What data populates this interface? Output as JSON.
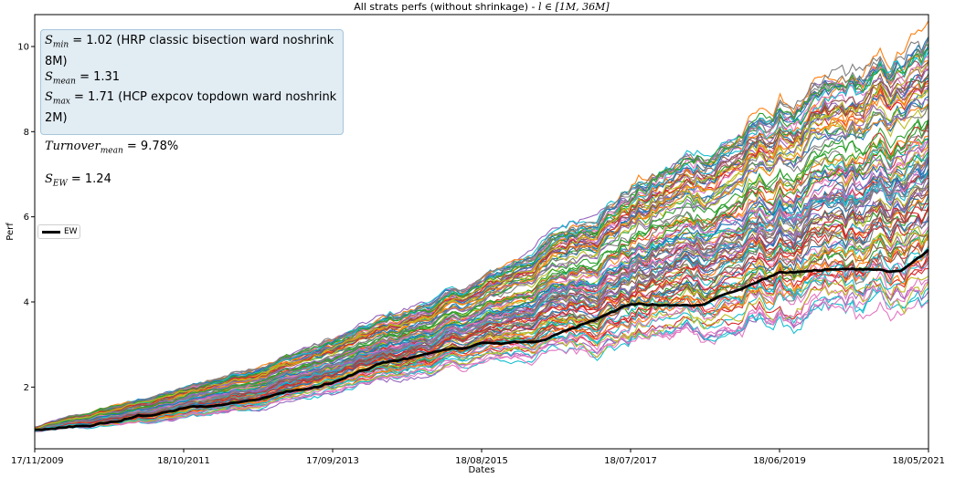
{
  "chart_data": {
    "type": "line",
    "title_prefix": "All strats perfs (without shrinkage) - ",
    "title_math": "l ∈ [1M, 36M]",
    "xlabel": "Dates",
    "ylabel": "Perf",
    "ylim": [
      0.55,
      10.75
    ],
    "yticks": [
      2,
      4,
      6,
      8,
      10
    ],
    "x_range": [
      "17/11/2009",
      "18/05/2021"
    ],
    "xticks": [
      "17/11/2009",
      "18/10/2011",
      "17/09/2013",
      "18/08/2015",
      "18/07/2017",
      "18/06/2019",
      "18/05/2021"
    ],
    "grid": false,
    "legend_position": "center-left",
    "highlight_series": {
      "name": "EW",
      "color": "#000000",
      "points": [
        [
          "17/11/2009",
          1.0
        ],
        [
          "01/06/2010",
          1.05
        ],
        [
          "18/10/2011",
          1.5
        ],
        [
          "01/06/2012",
          1.6
        ],
        [
          "17/09/2013",
          2.1
        ],
        [
          "01/06/2014",
          2.6
        ],
        [
          "18/08/2015",
          3.0
        ],
        [
          "01/06/2016",
          3.1
        ],
        [
          "18/07/2017",
          3.95
        ],
        [
          "01/06/2018",
          3.9
        ],
        [
          "18/06/2019",
          4.7
        ],
        [
          "01/06/2020",
          4.75
        ],
        [
          "01/01/2021",
          4.7
        ],
        [
          "18/05/2021",
          5.2
        ]
      ]
    },
    "envelope": {
      "description_points_max": [
        [
          "17/11/2009",
          1.05
        ],
        [
          "18/10/2011",
          1.95
        ],
        [
          "17/09/2013",
          3.1
        ],
        [
          "18/08/2015",
          4.5
        ],
        [
          "18/07/2017",
          6.7
        ],
        [
          "18/06/2019",
          8.5
        ],
        [
          "18/05/2021",
          10.0
        ]
      ],
      "description_points_min": [
        [
          "17/11/2009",
          0.95
        ],
        [
          "18/10/2011",
          1.25
        ],
        [
          "17/09/2013",
          1.85
        ],
        [
          "18/08/2015",
          2.55
        ],
        [
          "18/07/2017",
          3.0
        ],
        [
          "18/06/2019",
          3.35
        ],
        [
          "18/05/2021",
          3.8
        ]
      ]
    },
    "series_count_shown": "many (one per strategy)"
  },
  "stats_box": {
    "s_min_value": "= 1.02 (HRP classic bisection ward noshrink 8M)",
    "s_mean_value": "= 1.31",
    "s_max_value": "= 1.71 (HCP expcov topdown ward noshrink 2M)",
    "turnover_value": "= 9.78%",
    "s_ew_value": "= 1.24",
    "s_symbol": "S",
    "s_min_sub": "min",
    "s_mean_sub": "mean",
    "s_max_sub": "max",
    "turnover_symbol": "Turnover",
    "turnover_sub": "mean",
    "s_ew_sub": "EW"
  },
  "legend": {
    "label": "EW"
  },
  "palette": [
    "#1f77b4",
    "#ff7f0e",
    "#2ca02c",
    "#d62728",
    "#9467bd",
    "#8c564b",
    "#e377c2",
    "#7f7f7f",
    "#bcbd22",
    "#17becf"
  ]
}
